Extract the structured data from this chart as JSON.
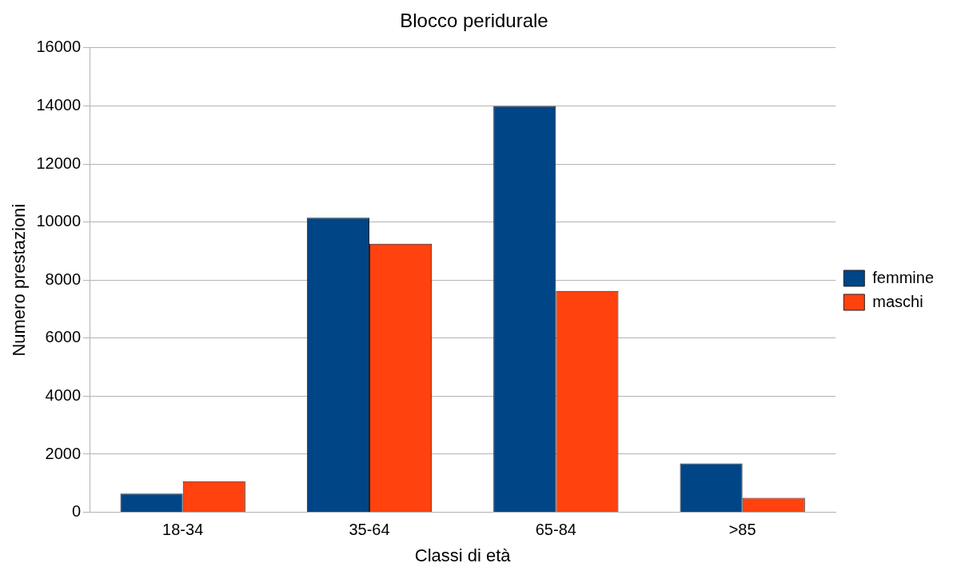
{
  "chart_data": {
    "type": "bar",
    "title": "Blocco peridurale",
    "xlabel": "Classi di età",
    "ylabel": "Numero prestazioni",
    "categories": [
      "18-34",
      "35-64",
      "65-84",
      ">85"
    ],
    "series": [
      {
        "name": "femmine",
        "color": "#004586",
        "values": [
          640,
          10150,
          14000,
          1680
        ]
      },
      {
        "name": "maschi",
        "color": "#ff420e",
        "values": [
          1070,
          9250,
          7630,
          500
        ]
      }
    ],
    "ylim": [
      0,
      16000
    ],
    "yticks": [
      0,
      2000,
      4000,
      6000,
      8000,
      10000,
      12000,
      14000,
      16000
    ],
    "grid": "y",
    "legend": "right"
  }
}
